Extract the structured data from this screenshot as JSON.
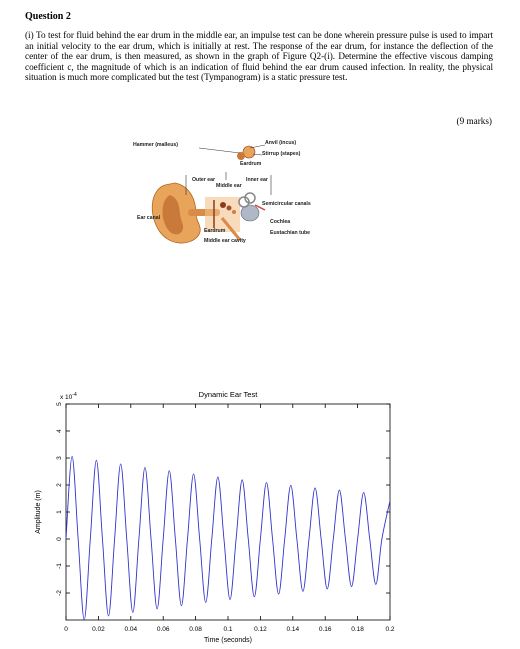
{
  "question": {
    "title": "Question 2",
    "body": "(i) To test for fluid behind the ear drum in the middle ear, an impulse test can be done wherein pressure pulse is used to impart an initial velocity to the ear drum, which is initially at rest. The response of the ear drum, for instance the deflection of the center of the ear drum, is then measured, as shown in the graph of Figure Q2-(i). Determine the effective viscous damping coefficient c, the magnitude of which is an indication of fluid behind the ear drum caused infection. In reality, the physical situation is much more complicated but the test (Tympanogram) is a static pressure test.",
    "marks": "(9 marks)"
  },
  "figure": {
    "labels": [
      "Hammer (malleus)",
      "Anvil (incus)",
      "Stirrup (stapes)",
      "Eardrum",
      "Outer ear",
      "Middle ear",
      "Inner ear",
      "Semicircular canals",
      "Ear canal",
      "Cochlea",
      "Eardrum",
      "Eustachian tube",
      "Middle ear cavity"
    ]
  },
  "chart_data": {
    "type": "line",
    "title": "Dynamic Ear Test",
    "x_label": "Time (seconds)",
    "y_label": "Amplitude (m)",
    "y_multiplier": {
      "base": "x 10",
      "exponent": "-4"
    },
    "color": "#3333cc",
    "x": [
      0,
      0.00375,
      0.0075,
      0.01125,
      0.015,
      0.01875,
      0.0225,
      0.02625,
      0.03,
      0.03375,
      0.0375,
      0.04125,
      0.045,
      0.04875,
      0.0525,
      0.05625,
      0.06,
      0.06375,
      0.0675,
      0.07125,
      0.075,
      0.07875,
      0.0825,
      0.08625,
      0.09,
      0.09375,
      0.0975,
      0.10125,
      0.105,
      0.10875,
      0.1125,
      0.11625,
      0.12,
      0.12375,
      0.1275,
      0.13125,
      0.135,
      0.13875,
      0.1425,
      0.14625,
      0.15,
      0.15375,
      0.1575,
      0.16125,
      0.165,
      0.16875,
      0.1725,
      0.17625,
      0.18,
      0.18375,
      0.1875,
      0.19125,
      0.195,
      0.2
    ],
    "values": [
      0,
      3.06,
      0,
      -2.99,
      0,
      2.92,
      0,
      -2.85,
      0,
      2.78,
      0,
      -2.72,
      0,
      2.65,
      0,
      -2.59,
      0,
      2.53,
      0,
      -2.47,
      0,
      2.41,
      0,
      -2.35,
      0,
      2.3,
      0,
      -2.24,
      0,
      2.19,
      0,
      -2.14,
      0,
      2.09,
      0,
      -2.04,
      0,
      1.99,
      0,
      -1.94,
      0,
      1.89,
      0,
      -1.85,
      0,
      1.81,
      0,
      -1.76,
      0,
      1.72,
      0,
      -1.68,
      0,
      1.42
    ],
    "xlim": [
      0,
      0.2
    ],
    "ylim": [
      -3,
      5
    ],
    "xticks": [
      0,
      0.02,
      0.04,
      0.06,
      0.08,
      0.1,
      0.12,
      0.14,
      0.16,
      0.18,
      0.2
    ],
    "yticks": [
      5,
      4,
      3,
      2,
      1,
      0,
      -1,
      -2
    ],
    "grid": false
  }
}
